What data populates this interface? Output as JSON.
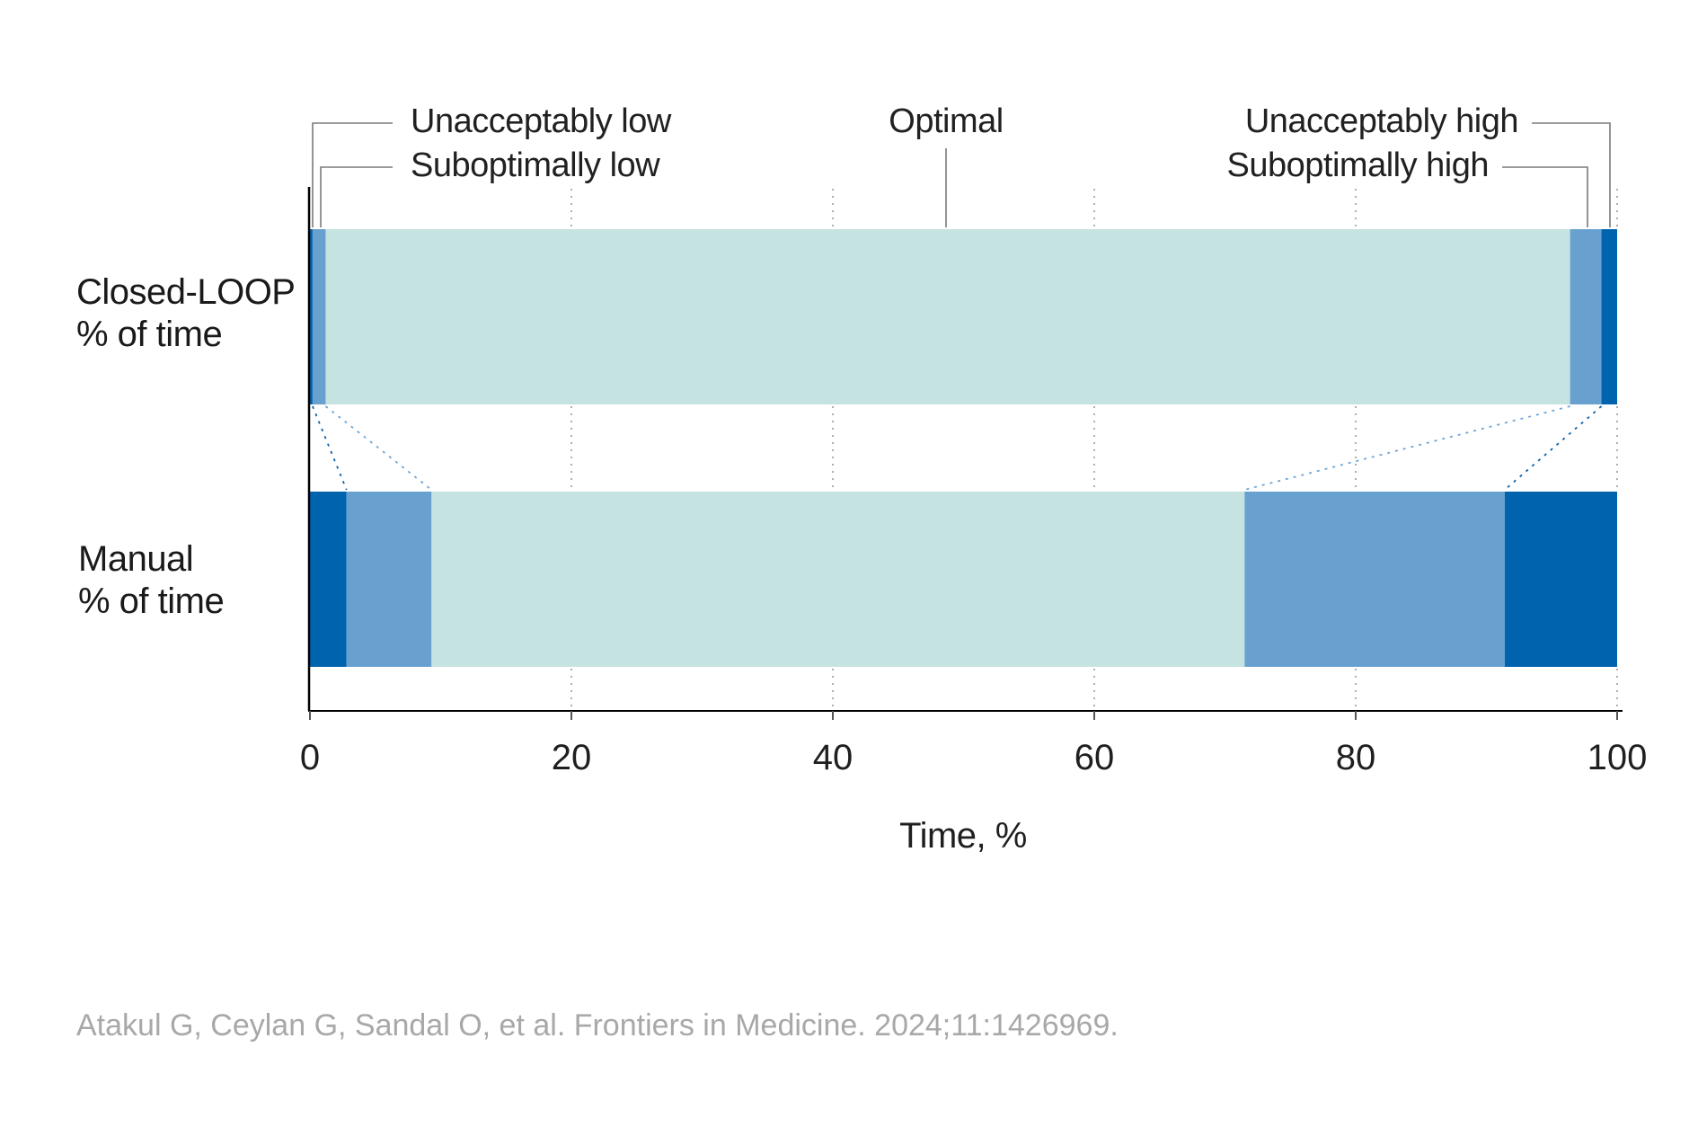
{
  "callouts": {
    "unacceptably_low": "Unacceptably low",
    "suboptimally_low": "Suboptimally low",
    "optimal": "Optimal",
    "unacceptably_high": "Unacceptably high",
    "suboptimally_high": "Suboptimally high"
  },
  "rows": {
    "closed_loop": {
      "line1": "Closed-LOOP",
      "line2": "% of time"
    },
    "manual": {
      "line1": "Manual",
      "line2": "% of time"
    }
  },
  "axis": {
    "label": "Time, %"
  },
  "citation": "Atakul G, Ceylan G, Sandal O, et al. Frontiers in Medicine. 2024;11:1426969.",
  "colors": {
    "unacceptable": "#0063ae",
    "suboptimal": "#68a1d0",
    "optimal": "#c5e3e1",
    "axis": "#000000",
    "gridline": "#9a9a9a",
    "leader": "#7a7a7a",
    "connector_dark": "#0d5fa8",
    "connector_light": "#6fa4d8",
    "tick_text": "#1f1f1f"
  },
  "chart_data": {
    "type": "bar",
    "orientation": "horizontal",
    "stacked": true,
    "categories": [
      "Unacceptably low",
      "Suboptimally low",
      "Optimal",
      "Suboptimally high",
      "Unacceptably high"
    ],
    "series": [
      {
        "name": "Closed-LOOP % of time",
        "values": [
          0.2,
          1.0,
          95.2,
          2.4,
          1.2
        ]
      },
      {
        "name": "Manual % of time",
        "values": [
          2.8,
          6.5,
          62.2,
          19.9,
          8.6
        ]
      }
    ],
    "xlabel": "Time, %",
    "xlim": [
      0,
      100
    ],
    "x_ticks": [
      0,
      20,
      40,
      60,
      80,
      100
    ],
    "grid": "dotted-vertical-at-ticks",
    "legend_position": "callout-labels-above-chart",
    "category_colors": [
      "#0063ae",
      "#68a1d0",
      "#c5e3e1",
      "#68a1d0",
      "#0063ae"
    ]
  }
}
